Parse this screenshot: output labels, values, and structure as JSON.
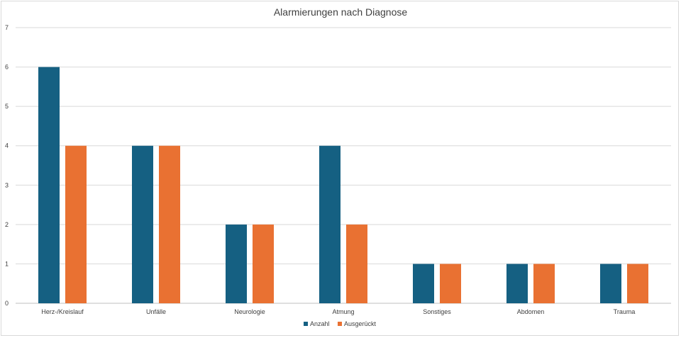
{
  "chart_data": {
    "type": "bar",
    "title": "Alarmierungen nach Diagnose",
    "categories": [
      "Herz-/Kreislauf",
      "Unfälle",
      "Neurologie",
      "Atmung",
      "Sonstiges",
      "Abdomen",
      "Trauma"
    ],
    "series": [
      {
        "name": "Anzahl",
        "color": "#156082",
        "values": [
          6,
          4,
          2,
          4,
          1,
          1,
          1
        ]
      },
      {
        "name": "Ausgerückt",
        "color": "#e97132",
        "values": [
          4,
          4,
          2,
          2,
          1,
          1,
          1
        ]
      }
    ],
    "ylim": [
      0,
      7
    ],
    "yticks": [
      "0",
      "1",
      "2",
      "3",
      "4",
      "5",
      "6",
      "7"
    ],
    "xlabel": "",
    "ylabel": "",
    "grid": true,
    "legend": "bottom"
  }
}
